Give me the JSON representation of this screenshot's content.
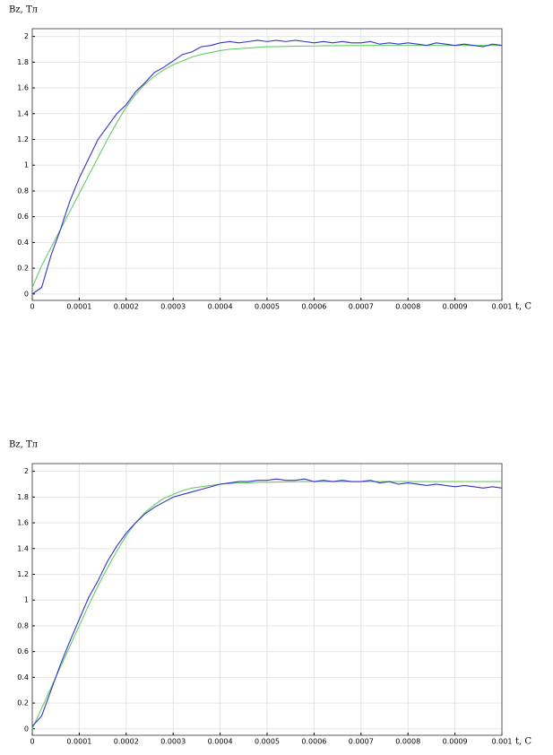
{
  "chart_data": [
    {
      "type": "line",
      "y_label": "Bz, Тл",
      "x_label": "t, С",
      "x": [
        0,
        2e-05,
        4e-05,
        6e-05,
        8e-05,
        0.0001,
        0.00012,
        0.00014,
        0.00016,
        0.00018,
        0.0002,
        0.00022,
        0.00024,
        0.00026,
        0.00028,
        0.0003,
        0.00032,
        0.00034,
        0.00036,
        0.00038,
        0.0004,
        0.00042,
        0.00044,
        0.00046,
        0.00048,
        0.0005,
        0.00052,
        0.00054,
        0.00056,
        0.00058,
        0.0006,
        0.00062,
        0.00064,
        0.00066,
        0.00068,
        0.0007,
        0.00072,
        0.00074,
        0.00076,
        0.00078,
        0.0008,
        0.00082,
        0.00084,
        0.00086,
        0.00088,
        0.0009,
        0.00092,
        0.00094,
        0.00096,
        0.00098,
        0.001
      ],
      "series": [
        {
          "color": "#66cc66",
          "values": [
            0.05,
            0.22,
            0.36,
            0.5,
            0.64,
            0.78,
            0.92,
            1.06,
            1.2,
            1.33,
            1.45,
            1.55,
            1.63,
            1.69,
            1.74,
            1.78,
            1.81,
            1.84,
            1.86,
            1.875,
            1.89,
            1.9,
            1.905,
            1.91,
            1.915,
            1.92,
            1.92,
            1.922,
            1.924,
            1.925,
            1.926,
            1.927,
            1.928,
            1.928,
            1.929,
            1.929,
            1.93,
            1.93,
            1.93,
            1.93,
            1.93,
            1.93,
            1.93,
            1.93,
            1.93,
            1.93,
            1.93,
            1.93,
            1.93,
            1.93,
            1.93
          ]
        },
        {
          "color": "#3333cc",
          "values": [
            0,
            0.05,
            0.3,
            0.5,
            0.72,
            0.9,
            1.05,
            1.2,
            1.3,
            1.4,
            1.47,
            1.57,
            1.64,
            1.72,
            1.76,
            1.81,
            1.86,
            1.88,
            1.92,
            1.93,
            1.95,
            1.96,
            1.95,
            1.96,
            1.97,
            1.96,
            1.97,
            1.96,
            1.97,
            1.96,
            1.95,
            1.96,
            1.95,
            1.96,
            1.95,
            1.95,
            1.96,
            1.94,
            1.95,
            1.94,
            1.95,
            1.94,
            1.93,
            1.95,
            1.94,
            1.93,
            1.94,
            1.93,
            1.92,
            1.94,
            1.93
          ]
        }
      ],
      "xlim": [
        0,
        0.001
      ],
      "ylim": [
        -0.05,
        2.06
      ],
      "xticks": [
        0,
        0.0001,
        0.0002,
        0.0003,
        0.0004,
        0.0005,
        0.0006,
        0.0007,
        0.0008,
        0.0009,
        0.001
      ],
      "yticks": [
        0,
        0.2,
        0.4,
        0.6,
        0.8,
        1,
        1.2,
        1.4,
        1.6,
        1.8,
        2
      ],
      "grid": true
    },
    {
      "type": "line",
      "y_label": "Bz, Тл",
      "x_label": "t, С",
      "x": [
        0,
        2e-05,
        4e-05,
        6e-05,
        8e-05,
        0.0001,
        0.00012,
        0.00014,
        0.00016,
        0.00018,
        0.0002,
        0.00022,
        0.00024,
        0.00026,
        0.00028,
        0.0003,
        0.00032,
        0.00034,
        0.00036,
        0.00038,
        0.0004,
        0.00042,
        0.00044,
        0.00046,
        0.00048,
        0.0005,
        0.00052,
        0.00054,
        0.00056,
        0.00058,
        0.0006,
        0.00062,
        0.00064,
        0.00066,
        0.00068,
        0.0007,
        0.00072,
        0.00074,
        0.00076,
        0.00078,
        0.0008,
        0.00082,
        0.00084,
        0.00086,
        0.00088,
        0.0009,
        0.00092,
        0.00094,
        0.00096,
        0.00098,
        0.001
      ],
      "series": [
        {
          "color": "#66cc66",
          "values": [
            0,
            0.16,
            0.32,
            0.48,
            0.64,
            0.8,
            0.96,
            1.11,
            1.25,
            1.38,
            1.5,
            1.6,
            1.68,
            1.74,
            1.79,
            1.82,
            1.85,
            1.87,
            1.88,
            1.89,
            1.9,
            1.905,
            1.91,
            1.91,
            1.915,
            1.915,
            1.917,
            1.918,
            1.919,
            1.92,
            1.92,
            1.92,
            1.92,
            1.92,
            1.92,
            1.92,
            1.92,
            1.92,
            1.92,
            1.92,
            1.92,
            1.92,
            1.92,
            1.92,
            1.92,
            1.92,
            1.92,
            1.92,
            1.92,
            1.92,
            1.92
          ]
        },
        {
          "color": "#3333cc",
          "values": [
            0.02,
            0.1,
            0.3,
            0.5,
            0.68,
            0.85,
            1.02,
            1.15,
            1.3,
            1.42,
            1.52,
            1.6,
            1.67,
            1.72,
            1.76,
            1.8,
            1.82,
            1.84,
            1.86,
            1.88,
            1.9,
            1.91,
            1.92,
            1.92,
            1.93,
            1.93,
            1.94,
            1.93,
            1.93,
            1.94,
            1.92,
            1.93,
            1.92,
            1.93,
            1.92,
            1.92,
            1.93,
            1.91,
            1.92,
            1.9,
            1.91,
            1.9,
            1.89,
            1.9,
            1.89,
            1.88,
            1.89,
            1.88,
            1.87,
            1.88,
            1.87
          ]
        }
      ],
      "xlim": [
        0,
        0.001
      ],
      "ylim": [
        -0.05,
        2.06
      ],
      "xticks": [
        0,
        0.0001,
        0.0002,
        0.0003,
        0.0004,
        0.0005,
        0.0006,
        0.0007,
        0.0008,
        0.0009,
        0.001
      ],
      "yticks": [
        0,
        0.2,
        0.4,
        0.6,
        0.8,
        1,
        1.2,
        1.4,
        1.6,
        1.8,
        2
      ],
      "grid": true
    }
  ]
}
